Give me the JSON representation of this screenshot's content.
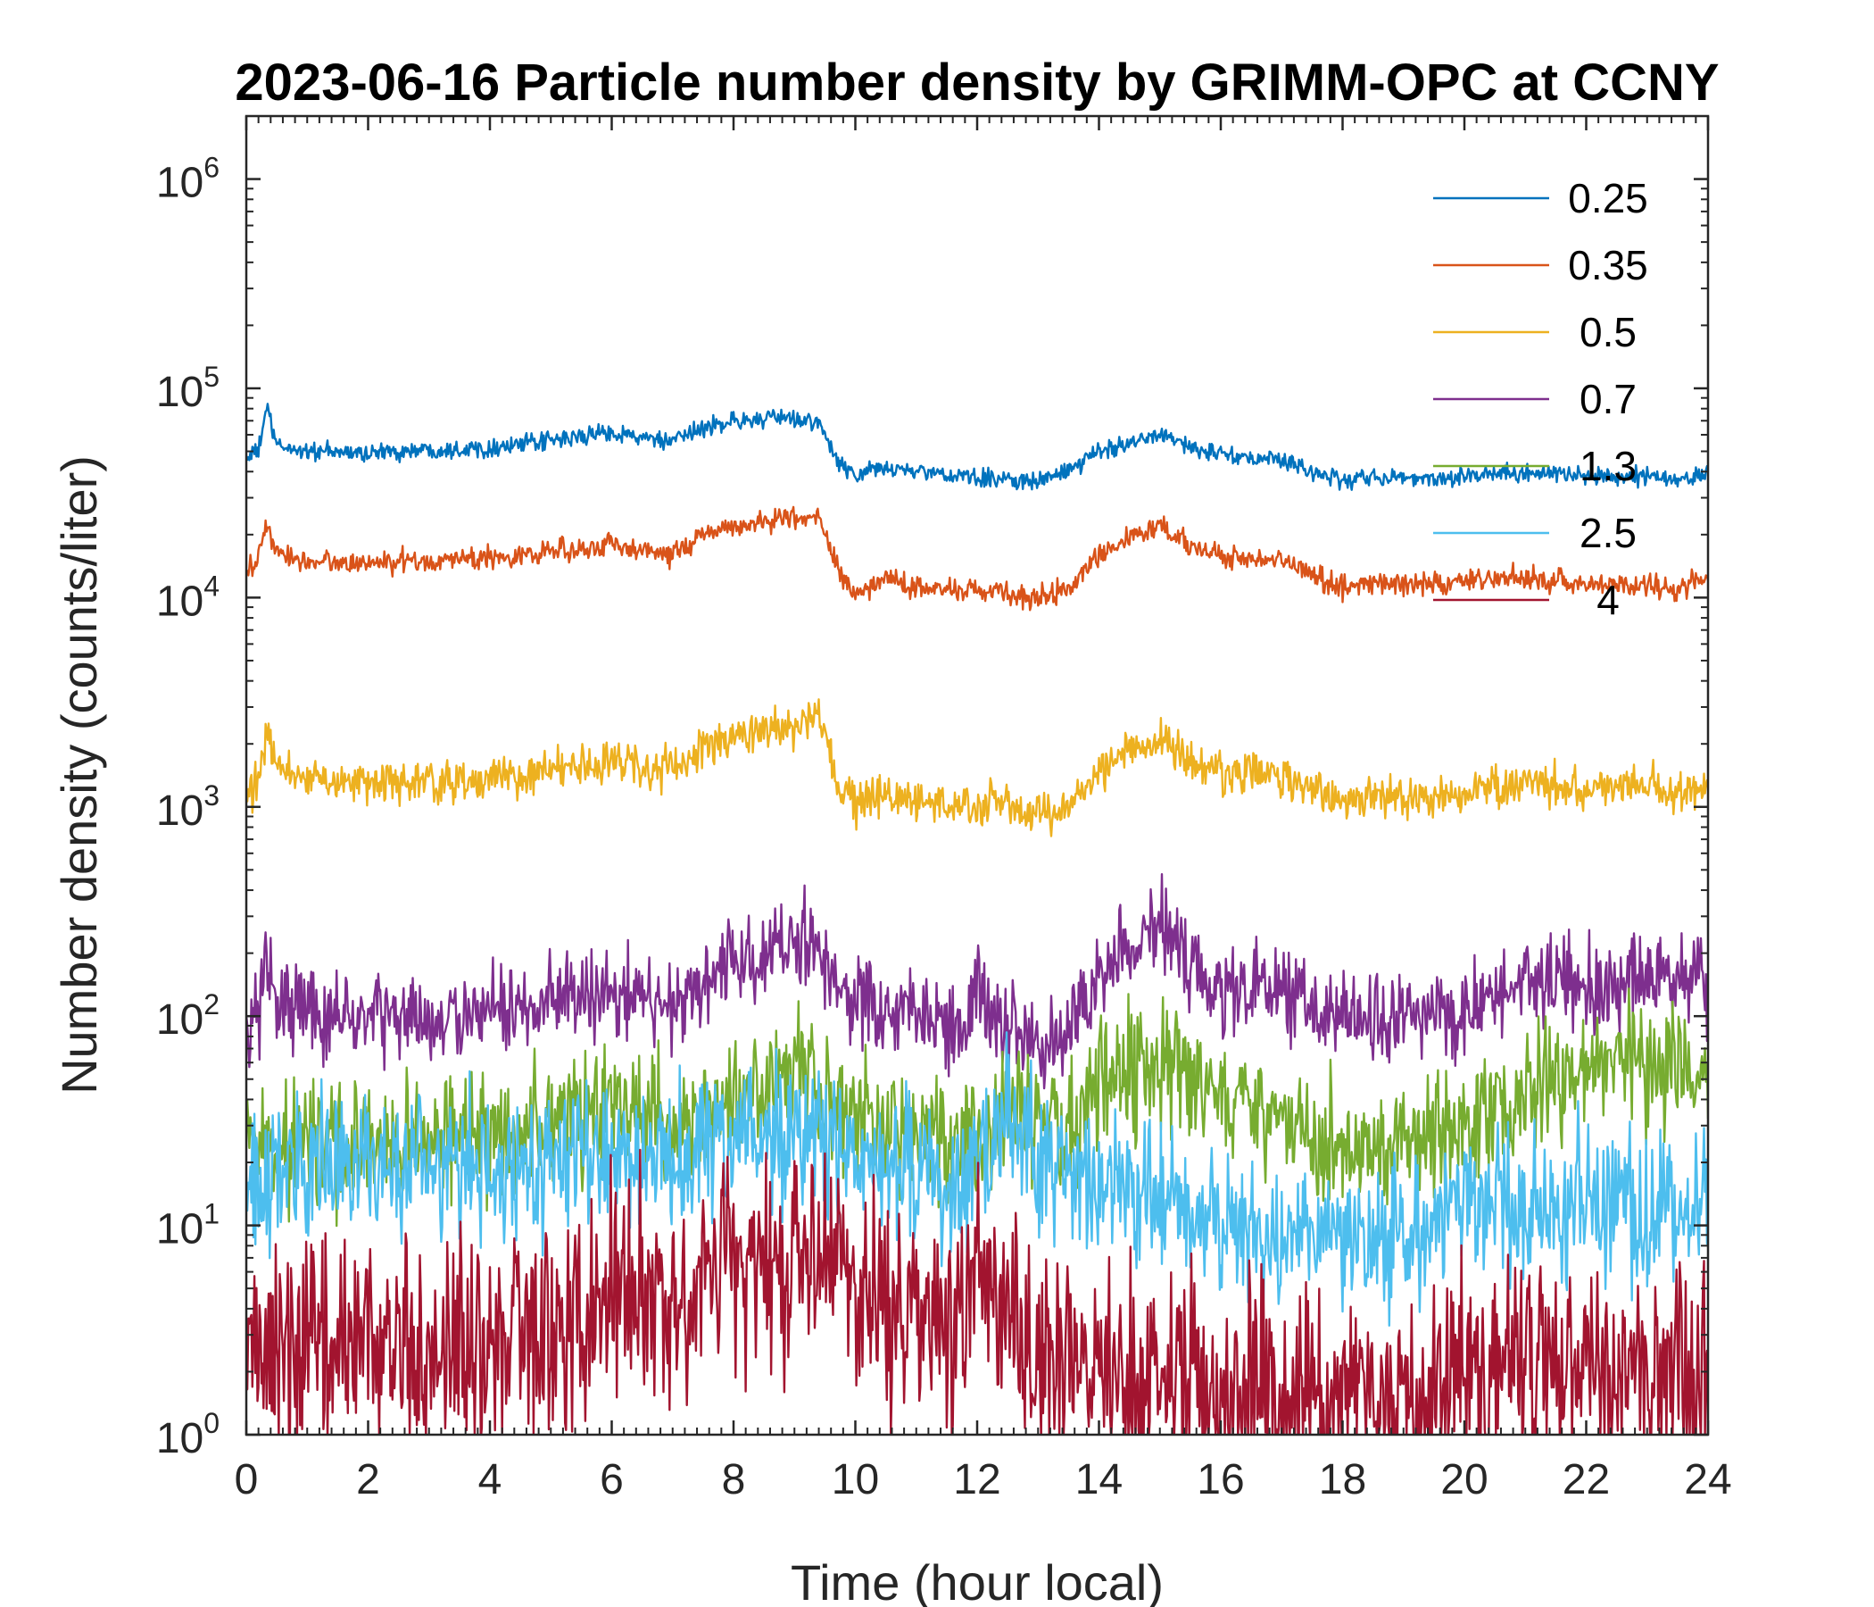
{
  "chart_data": {
    "type": "line",
    "title": "2023-06-16 Particle number density by GRIMM-OPC at CCNY",
    "xlabel": "Time (hour local)",
    "ylabel": "Number density (counts/liter)",
    "xlim": [
      0,
      24
    ],
    "ylim": [
      1,
      2000000
    ],
    "yscale": "log",
    "xticks": [
      0,
      2,
      4,
      6,
      8,
      10,
      12,
      14,
      16,
      18,
      20,
      22,
      24
    ],
    "yticks": [
      {
        "base": "10",
        "exp": "0",
        "value": 1
      },
      {
        "base": "10",
        "exp": "1",
        "value": 10
      },
      {
        "base": "10",
        "exp": "2",
        "value": 100
      },
      {
        "base": "10",
        "exp": "3",
        "value": 1000
      },
      {
        "base": "10",
        "exp": "4",
        "value": 10000
      },
      {
        "base": "10",
        "exp": "5",
        "value": 100000
      },
      {
        "base": "10",
        "exp": "6",
        "value": 1000000
      }
    ],
    "legend_position": "top-right",
    "series": [
      {
        "name": "0.25",
        "color": "#0072BD",
        "noise": 0.04,
        "x": [
          0,
          0.2,
          0.33,
          0.5,
          1,
          2,
          3,
          4,
          5,
          6,
          6.5,
          7,
          7.5,
          8,
          9,
          9.4,
          9.7,
          10,
          10.5,
          11,
          12,
          12.5,
          13,
          13.5,
          14,
          14.5,
          15,
          15.5,
          16,
          17,
          18,
          18.5,
          19,
          20,
          21,
          22,
          23,
          23.5,
          24
        ],
        "y": [
          47000,
          50000,
          82000,
          53000,
          50000,
          49000,
          51000,
          52000,
          56000,
          62000,
          58000,
          55000,
          65000,
          70000,
          72000,
          68000,
          45000,
          38000,
          42000,
          40000,
          37000,
          37000,
          36000,
          40000,
          50000,
          55000,
          62000,
          52000,
          48000,
          45000,
          36000,
          38000,
          37000,
          38000,
          40000,
          38000,
          38000,
          36000,
          40000
        ]
      },
      {
        "name": "0.35",
        "color": "#D95319",
        "noise": 0.05,
        "x": [
          0,
          0.2,
          0.33,
          0.5,
          1,
          2,
          3,
          4,
          5,
          6,
          6.5,
          7,
          7.5,
          8,
          9,
          9.4,
          9.7,
          10,
          10.5,
          11,
          12,
          12.5,
          13,
          13.5,
          14,
          14.5,
          15,
          15.5,
          16,
          17,
          18,
          18.5,
          19,
          20,
          21,
          22,
          23,
          23.5,
          24
        ],
        "y": [
          13500,
          15000,
          23000,
          16000,
          15000,
          14500,
          15000,
          15500,
          16500,
          18000,
          17000,
          16000,
          20000,
          22000,
          24000,
          25000,
          14000,
          10000,
          12500,
          11000,
          11000,
          10500,
          10000,
          11000,
          16000,
          19000,
          22000,
          18000,
          15500,
          15000,
          11000,
          12000,
          11500,
          12000,
          12500,
          11500,
          11500,
          11000,
          12500
        ]
      },
      {
        "name": "0.5",
        "color": "#EDB120",
        "noise": 0.09,
        "x": [
          0,
          0.2,
          0.33,
          0.5,
          1,
          2,
          3,
          4,
          5,
          6,
          6.5,
          7,
          7.5,
          8,
          9,
          9.4,
          9.7,
          10,
          10.5,
          11,
          12,
          12.5,
          13,
          13.5,
          14,
          14.5,
          15,
          15.5,
          16,
          17,
          18,
          18.5,
          19,
          20,
          21,
          22,
          23,
          23.5,
          24
        ],
        "y": [
          1150,
          1300,
          2200,
          1500,
          1400,
          1300,
          1300,
          1350,
          1500,
          1650,
          1550,
          1500,
          1900,
          2200,
          2400,
          2600,
          1300,
          1000,
          1150,
          1050,
          1000,
          1050,
          900,
          1000,
          1500,
          1800,
          2200,
          1600,
          1450,
          1400,
          1050,
          1150,
          1100,
          1150,
          1300,
          1200,
          1300,
          1100,
          1300
        ]
      },
      {
        "name": "0.7",
        "color": "#7E2F8E",
        "noise": 0.2,
        "x": [
          0,
          0.2,
          0.33,
          0.5,
          1,
          2,
          3,
          4,
          5,
          6,
          6.5,
          7,
          7.5,
          8,
          9,
          9.4,
          9.7,
          10,
          10.5,
          11,
          11.8,
          12,
          12.3,
          12.5,
          13,
          13.5,
          14,
          14.5,
          15,
          15.5,
          16,
          17,
          18,
          18.5,
          19,
          20,
          21,
          22,
          23,
          23.5,
          24
        ],
        "y": [
          85,
          100,
          190,
          120,
          105,
          100,
          95,
          100,
          115,
          135,
          120,
          115,
          160,
          180,
          210,
          220,
          150,
          120,
          100,
          100,
          80,
          150,
          85,
          90,
          80,
          90,
          150,
          200,
          270,
          180,
          140,
          130,
          90,
          100,
          100,
          110,
          150,
          140,
          150,
          150,
          150
        ]
      },
      {
        "name": "1.3",
        "color": "#77AC30",
        "noise": 0.28,
        "x": [
          0,
          1,
          2,
          3,
          4,
          5,
          6,
          7,
          8,
          9,
          9.5,
          10,
          11,
          11.8,
          12,
          12.5,
          13,
          13.5,
          14,
          15,
          16,
          17,
          18,
          19,
          20,
          21,
          22,
          23,
          24
        ],
        "y": [
          22,
          25,
          25,
          25,
          28,
          32,
          35,
          30,
          40,
          50,
          45,
          35,
          28,
          25,
          28,
          35,
          30,
          28,
          45,
          60,
          40,
          30,
          22,
          25,
          30,
          45,
          55,
          60,
          60
        ]
      },
      {
        "name": "2.5",
        "color": "#4DBEEE",
        "noise": 0.32,
        "x": [
          0,
          1,
          2,
          3,
          4,
          5,
          6,
          7,
          8,
          9,
          9.5,
          10,
          11,
          11.8,
          12,
          12.5,
          13,
          14,
          15,
          16,
          17,
          18,
          19,
          20,
          21,
          22,
          23,
          24
        ],
        "y": [
          16,
          18,
          20,
          19,
          18,
          20,
          22,
          22,
          25,
          28,
          25,
          20,
          18,
          15,
          18,
          40,
          20,
          15,
          14,
          10,
          9,
          8,
          10,
          12,
          12,
          13,
          12,
          12
        ]
      },
      {
        "name": "4",
        "color": "#A2142F",
        "noise": 0.48,
        "x": [
          0,
          1,
          2,
          3,
          4,
          5,
          6,
          7,
          8,
          9,
          9.5,
          10,
          11,
          11.5,
          12,
          12.5,
          13,
          14,
          15,
          16,
          17,
          18,
          19,
          20,
          21,
          22,
          23,
          24
        ],
        "y": [
          2.5,
          3,
          3,
          2.5,
          3,
          3.5,
          4.5,
          5,
          5,
          7,
          8,
          5,
          3.5,
          3,
          7,
          4,
          2.5,
          2,
          1.8,
          1.5,
          1.5,
          1.5,
          1.5,
          2,
          2.2,
          2.2,
          2.2,
          2
        ]
      }
    ]
  }
}
